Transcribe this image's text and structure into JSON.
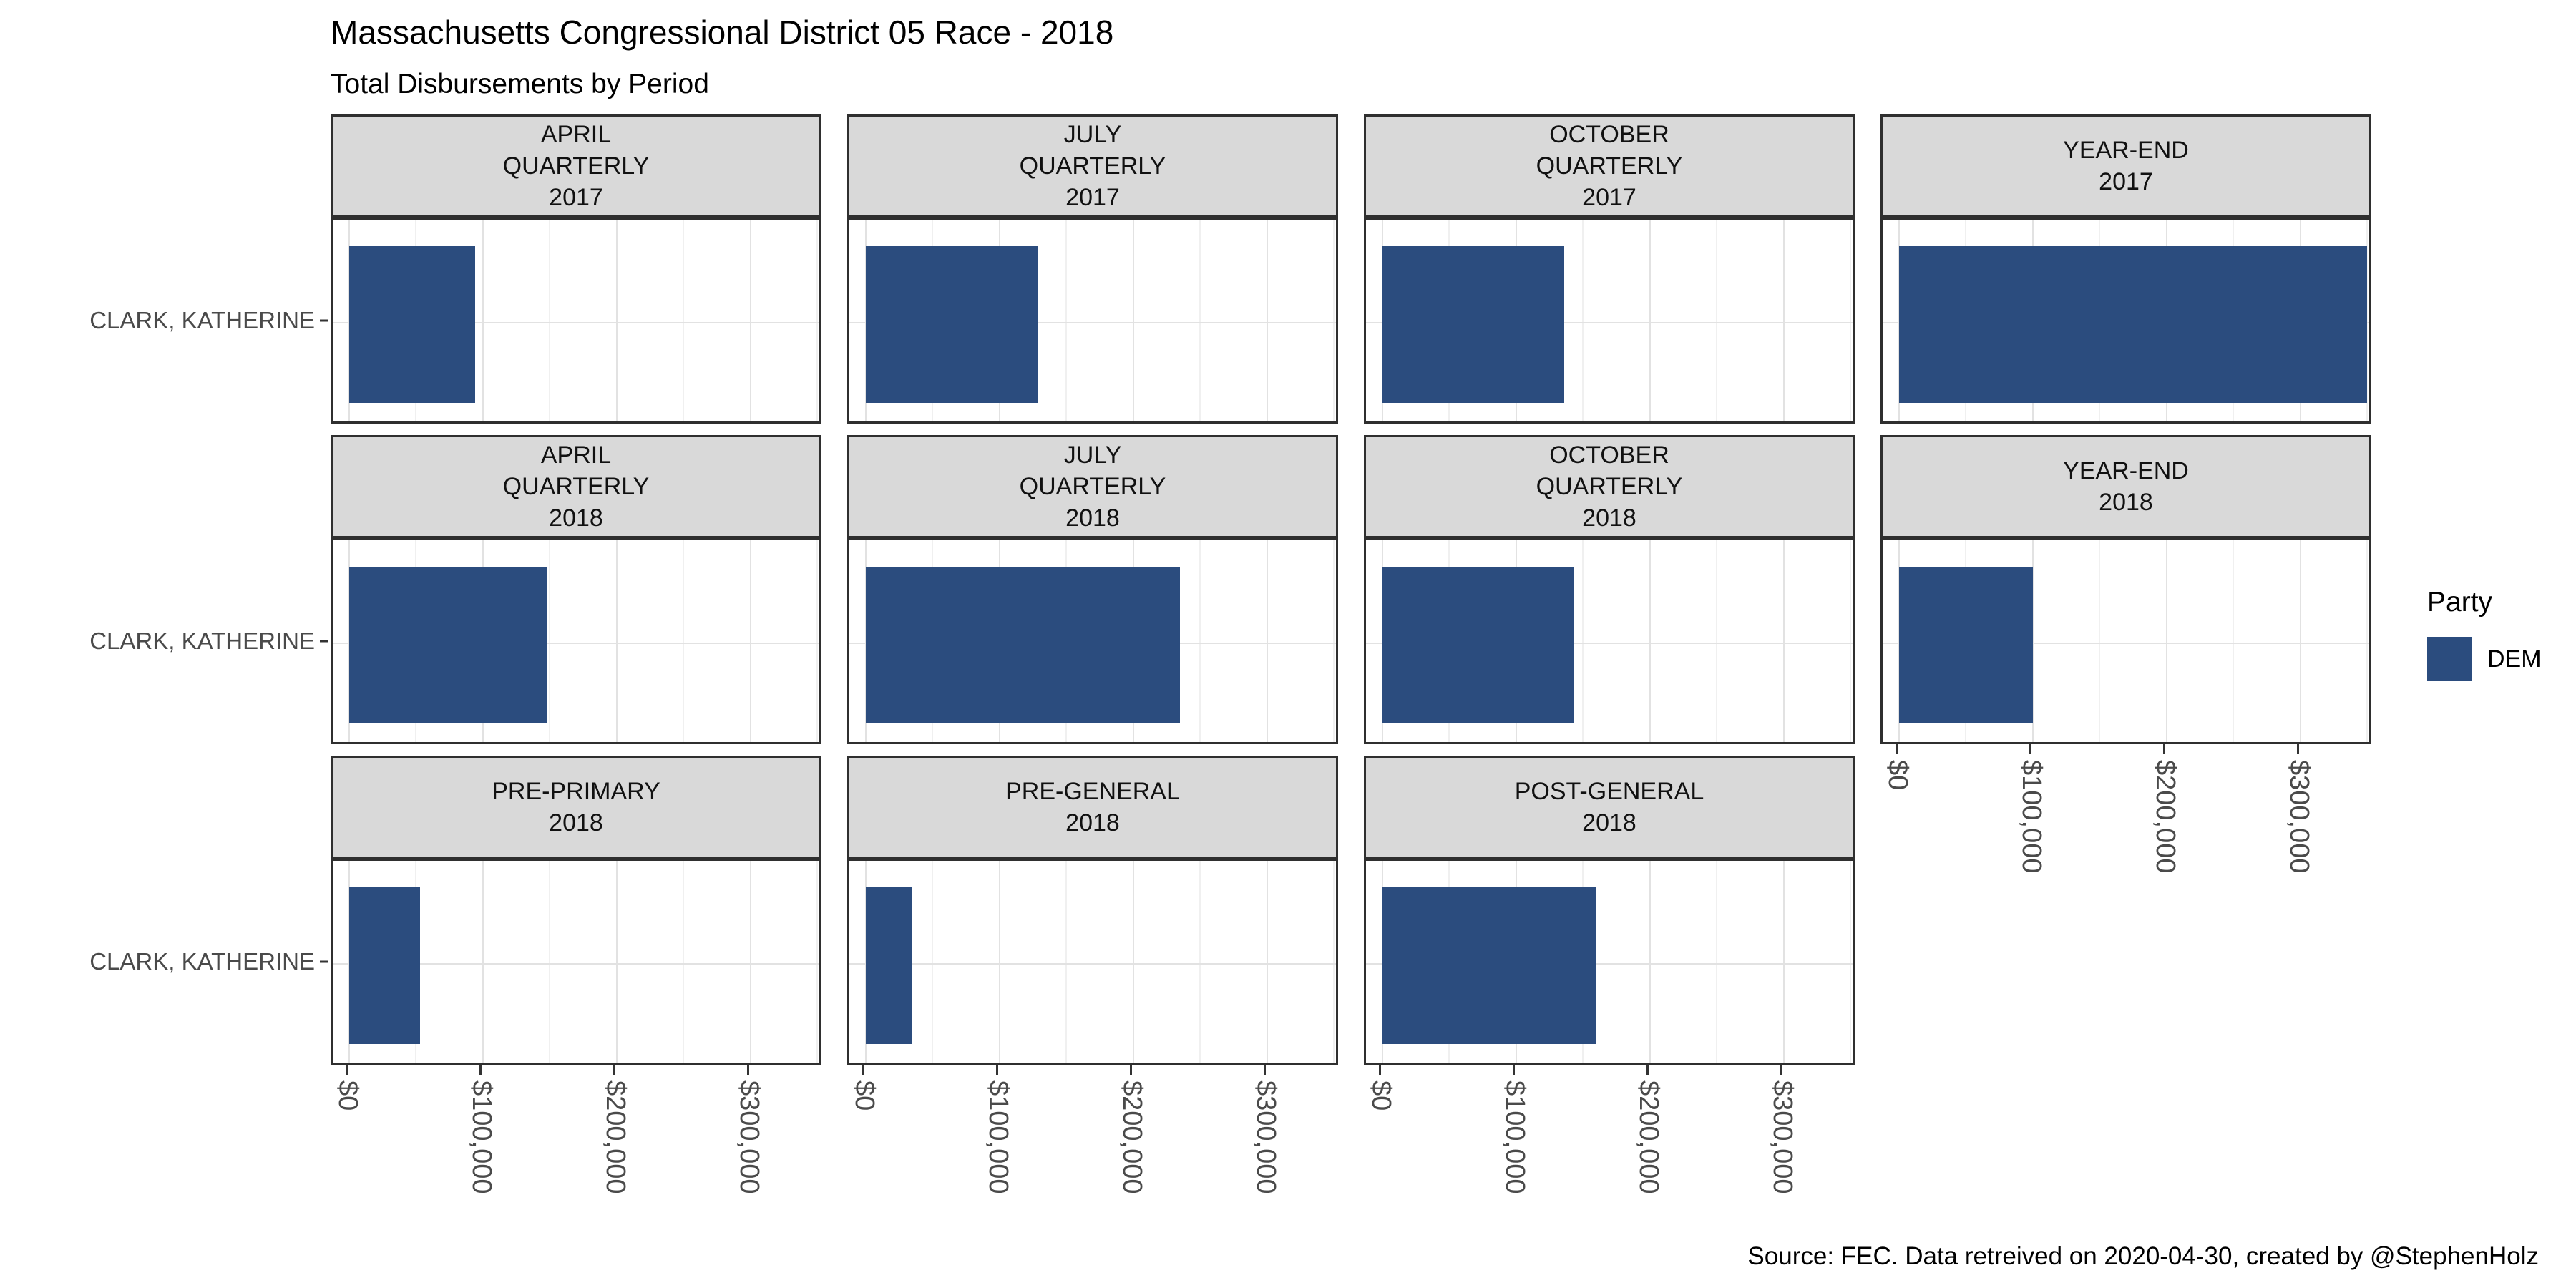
{
  "title": "Massachusetts Congressional District 05 Race - 2018",
  "subtitle": "Total Disbursements by Period",
  "caption": "Source: FEC. Data retreived on 2020-04-30, created by @StephenHolz",
  "legend": {
    "title": "Party",
    "items": [
      {
        "label": "DEM",
        "color": "#2b4c7e"
      }
    ],
    "position": "right"
  },
  "colors": {
    "bar_dem": "#2b4c7e",
    "strip_background": "#d9d9d9",
    "panel_border": "#2f2f2f",
    "grid_major": "#e2e2e2",
    "grid_minor": "#f0f0f0",
    "axis_text": "#4a4a4a",
    "tick_mark": "#333333"
  },
  "chart_data": {
    "type": "bar",
    "orientation": "horizontal",
    "title": "Massachusetts Congressional District 05 Race - 2018",
    "subtitle": "Total Disbursements by Period",
    "y_category": "CLARK, KATHERINE",
    "legend_position": "right",
    "grid": "major every 100000, minor every 50000",
    "xlim": [
      0,
      366000
    ],
    "x_ticks": {
      "labels": [
        "$0",
        "$100,000",
        "$200,000",
        "$300,000"
      ],
      "values": [
        0,
        100000,
        200000,
        300000
      ]
    },
    "facets": [
      {
        "slug": "april-quarterly-2017",
        "label_lines": [
          "APRIL",
          "QUARTERLY",
          "2017"
        ],
        "candidate": "CLARK, KATHERINE",
        "party": "DEM",
        "value": 94000,
        "row": 0,
        "col": 0,
        "show_x_axis": false
      },
      {
        "slug": "july-quarterly-2017",
        "label_lines": [
          "JULY",
          "QUARTERLY",
          "2017"
        ],
        "candidate": "CLARK, KATHERINE",
        "party": "DEM",
        "value": 129000,
        "row": 0,
        "col": 1,
        "show_x_axis": false
      },
      {
        "slug": "october-quarterly-2017",
        "label_lines": [
          "OCTOBER",
          "QUARTERLY",
          "2017"
        ],
        "candidate": "CLARK, KATHERINE",
        "party": "DEM",
        "value": 136000,
        "row": 0,
        "col": 2,
        "show_x_axis": false
      },
      {
        "slug": "year-end-2017",
        "label_lines": [
          "YEAR-END",
          "2017"
        ],
        "candidate": "CLARK, KATHERINE",
        "party": "DEM",
        "value": 350000,
        "row": 0,
        "col": 3,
        "show_x_axis": false
      },
      {
        "slug": "april-quarterly-2018",
        "label_lines": [
          "APRIL",
          "QUARTERLY",
          "2018"
        ],
        "candidate": "CLARK, KATHERINE",
        "party": "DEM",
        "value": 148000,
        "row": 1,
        "col": 0,
        "show_x_axis": false
      },
      {
        "slug": "july-quarterly-2018",
        "label_lines": [
          "JULY",
          "QUARTERLY",
          "2018"
        ],
        "candidate": "CLARK, KATHERINE",
        "party": "DEM",
        "value": 235000,
        "row": 1,
        "col": 1,
        "show_x_axis": false
      },
      {
        "slug": "october-quarterly-2018",
        "label_lines": [
          "OCTOBER",
          "QUARTERLY",
          "2018"
        ],
        "candidate": "CLARK, KATHERINE",
        "party": "DEM",
        "value": 143000,
        "row": 1,
        "col": 2,
        "show_x_axis": false
      },
      {
        "slug": "year-end-2018",
        "label_lines": [
          "YEAR-END",
          "2018"
        ],
        "candidate": "CLARK, KATHERINE",
        "party": "DEM",
        "value": 100000,
        "row": 1,
        "col": 3,
        "show_x_axis": true
      },
      {
        "slug": "pre-primary-2018",
        "label_lines": [
          "PRE-PRIMARY",
          "2018"
        ],
        "candidate": "CLARK, KATHERINE",
        "party": "DEM",
        "value": 53000,
        "row": 2,
        "col": 0,
        "show_x_axis": true
      },
      {
        "slug": "pre-general-2018",
        "label_lines": [
          "PRE-GENERAL",
          "2018"
        ],
        "candidate": "CLARK, KATHERINE",
        "party": "DEM",
        "value": 34000,
        "row": 2,
        "col": 1,
        "show_x_axis": true
      },
      {
        "slug": "post-general-2018",
        "label_lines": [
          "POST-GENERAL",
          "2018"
        ],
        "candidate": "CLARK, KATHERINE",
        "party": "DEM",
        "value": 160000,
        "row": 2,
        "col": 2,
        "show_x_axis": true
      }
    ],
    "row_y_axis_labels": [
      "CLARK, KATHERINE",
      "CLARK, KATHERINE",
      "CLARK, KATHERINE"
    ]
  }
}
